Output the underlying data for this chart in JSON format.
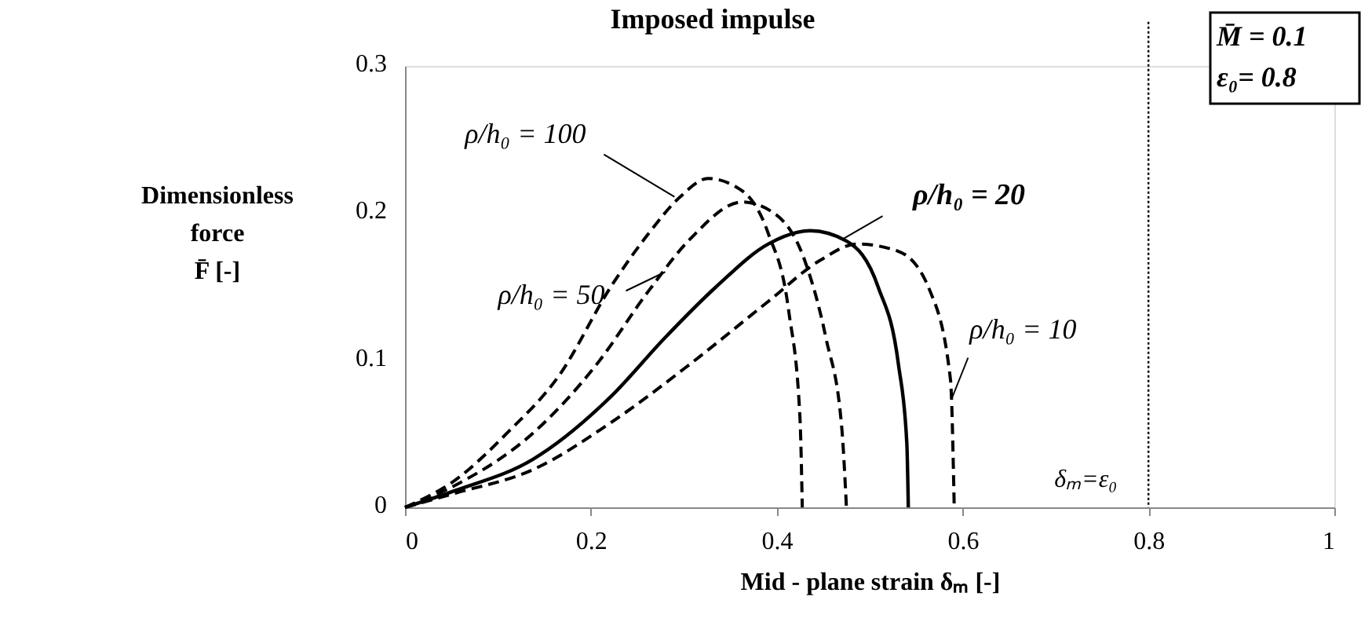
{
  "chart_data": {
    "type": "line",
    "title": "Imposed impulse",
    "xlabel": "Mid - plane strain δₘ [-]",
    "ylabel": "Dimensionless force F̄ [-]",
    "xlim": [
      0,
      1
    ],
    "xticks": [
      0,
      0.2,
      0.4,
      0.6,
      0.8,
      1
    ],
    "ylim": [
      0,
      0.3
    ],
    "yticks": [
      0,
      0.1,
      0.2,
      0.3
    ],
    "grid": false,
    "marker": "none",
    "series": [
      {
        "color": "#000000",
        "line_style": "dashed",
        "x": [
          0,
          0.054,
          0.11,
          0.166,
          0.222,
          0.262,
          0.296,
          0.326,
          0.363,
          0.391,
          0.413,
          0.425,
          0.4275
        ],
        "values": [
          0,
          0.0185,
          0.0506,
          0.0898,
          0.1504,
          0.186,
          0.211,
          0.2235,
          0.215,
          0.186,
          0.133,
          0.061,
          0
        ]
      },
      {
        "color": "#000000",
        "line_style": "dashed",
        "x": [
          0,
          0.054,
          0.138,
          0.206,
          0.262,
          0.307,
          0.363,
          0.397,
          0.43,
          0.453,
          0.47,
          0.475
        ],
        "values": [
          0,
          0.015,
          0.0506,
          0.097,
          0.147,
          0.1825,
          0.2075,
          0.2,
          0.168,
          0.115,
          0.054,
          0
        ]
      },
      {
        "color": "#000000",
        "line_style": "solid",
        "x": [
          0,
          0.054,
          0.138,
          0.222,
          0.279,
          0.335,
          0.391,
          0.436,
          0.475,
          0.509,
          0.531,
          0.54,
          0.5416
        ],
        "values": [
          0,
          0.0114,
          0.0328,
          0.0756,
          0.1148,
          0.15,
          0.179,
          0.188,
          0.181,
          0.15,
          0.097,
          0.0435,
          0
        ]
      },
      {
        "color": "#000000",
        "line_style": "dashed",
        "x": [
          0,
          0.054,
          0.138,
          0.222,
          0.306,
          0.391,
          0.447,
          0.4865,
          0.531,
          0.565,
          0.587,
          0.591
        ],
        "values": [
          0,
          0.0096,
          0.0257,
          0.0578,
          0.097,
          0.14,
          0.168,
          0.179,
          0.174,
          0.147,
          0.0866,
          0
        ]
      }
    ],
    "ref_lines": [
      {
        "axis": "x",
        "value": 0.8,
        "label": "δₘ=ε₀",
        "line_style": "dotted",
        "color": "#000000"
      }
    ],
    "annotations": [
      {
        "text": "ρ/h₀ = 100",
        "x": 0.29,
        "y": 0.211
      },
      {
        "text": "ρ/h₀ = 50",
        "x": 0.28,
        "y": 0.16
      },
      {
        "text": "ρ/h₀ = 20",
        "x": 0.47,
        "y": 0.182
      },
      {
        "text": "ρ/h₀ = 10",
        "x": 0.589,
        "y": 0.075
      },
      "M̄ = 0.1",
      "ε₀= 0.8"
    ]
  }
}
